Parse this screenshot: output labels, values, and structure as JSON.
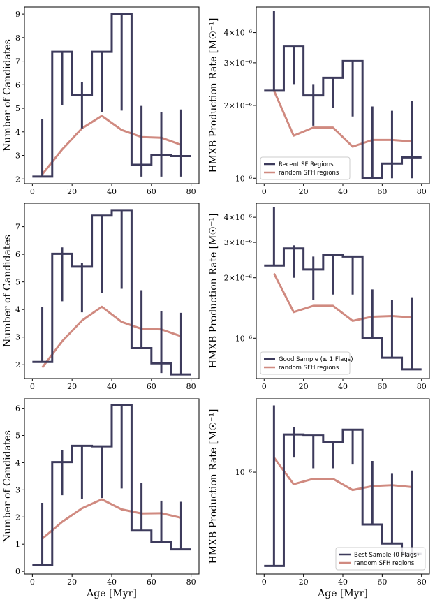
{
  "colors": {
    "step": "#3d3b5c",
    "random": "#d08a80"
  },
  "chart_data": [
    {
      "id": "p11",
      "type": "line",
      "xlabel": "",
      "ylabel": "Number of Candidates",
      "yscale": "linear",
      "xlim": [
        -4,
        84
      ],
      "ylim": [
        1.8,
        9.3
      ],
      "xticks": [
        0,
        20,
        40,
        60,
        80
      ],
      "xticklabels": [
        "0",
        "20",
        "40",
        "60",
        "80"
      ],
      "yticks": [
        2,
        3,
        4,
        5,
        6,
        7,
        8,
        9
      ],
      "yticklabels": [
        "2",
        "3",
        "4",
        "5",
        "6",
        "7",
        "8",
        "9"
      ],
      "step": {
        "edges": [
          0,
          10,
          20,
          30,
          40,
          50,
          60,
          70,
          80
        ],
        "values": [
          2.1,
          7.4,
          5.55,
          7.4,
          9.0,
          2.6,
          3.0,
          2.97
        ]
      },
      "errorbars": {
        "x": [
          5,
          15,
          25,
          35,
          45,
          55,
          65,
          75
        ],
        "lo": [
          2.1,
          5.15,
          4.15,
          4.85,
          4.9,
          2.1,
          2.1,
          2.1
        ],
        "hi": [
          4.55,
          7.4,
          6.1,
          7.4,
          9.0,
          5.1,
          4.85,
          4.95
        ]
      },
      "random": {
        "x": [
          5,
          15,
          25,
          35,
          45,
          55,
          65,
          75
        ],
        "y": [
          2.2,
          3.25,
          4.15,
          4.68,
          4.08,
          3.78,
          3.75,
          3.45
        ]
      },
      "legend": null
    },
    {
      "id": "p12",
      "type": "line",
      "xlabel": "",
      "ylabel": "HMXB Production Rate [M☉⁻¹]",
      "yscale": "log",
      "xlim": [
        -4,
        84
      ],
      "ylim": [
        9.5e-07,
        5.1e-06
      ],
      "xticks": [
        0,
        20,
        40,
        60,
        80
      ],
      "xticklabels": [
        "0",
        "20",
        "40",
        "60",
        "80"
      ],
      "yticks": [
        1e-06,
        2e-06,
        3e-06,
        4e-06
      ],
      "yticklabels": [
        "10⁻⁶",
        "2×10⁻⁶",
        "3×10⁻⁶",
        "4×10⁻⁶"
      ],
      "step": {
        "edges": [
          0,
          10,
          20,
          30,
          40,
          50,
          60,
          70,
          80
        ],
        "values": [
          2.3e-06,
          3.5e-06,
          2.2e-06,
          2.6e-06,
          3.05e-06,
          1e-06,
          1.15e-06,
          1.22e-06
        ]
      },
      "errorbars": {
        "x": [
          5,
          15,
          25,
          35,
          45,
          55,
          65,
          75
        ],
        "lo": [
          2.3e-06,
          2.45e-06,
          1.65e-06,
          1.95e-06,
          1.8e-06,
          1e-06,
          1e-06,
          1e-06
        ],
        "hi": [
          4.9e-06,
          3.5e-06,
          2.45e-06,
          2.6e-06,
          3.05e-06,
          1.98e-06,
          1.9e-06,
          2.08e-06
        ]
      },
      "random": {
        "x": [
          5,
          15,
          25,
          35,
          45,
          55,
          65,
          75
        ],
        "y": [
          2.3e-06,
          1.5e-06,
          1.62e-06,
          1.62e-06,
          1.35e-06,
          1.44e-06,
          1.44e-06,
          1.42e-06
        ]
      },
      "legend": {
        "position": "bottom-left",
        "entries": [
          {
            "label": "Recent SF Regions",
            "kind": "step"
          },
          {
            "label": "random SFH regions",
            "kind": "random"
          }
        ]
      }
    },
    {
      "id": "p21",
      "type": "line",
      "xlabel": "",
      "ylabel": "Number of Candidates",
      "yscale": "linear",
      "xlim": [
        -4,
        84
      ],
      "ylim": [
        1.5,
        7.85
      ],
      "xticks": [
        0,
        20,
        40,
        60,
        80
      ],
      "xticklabels": [
        "0",
        "20",
        "40",
        "60",
        "80"
      ],
      "yticks": [
        2,
        3,
        4,
        5,
        6,
        7
      ],
      "yticklabels": [
        "2",
        "3",
        "4",
        "5",
        "6",
        "7"
      ],
      "step": {
        "edges": [
          0,
          10,
          20,
          30,
          40,
          50,
          60,
          70,
          80
        ],
        "values": [
          2.1,
          6.02,
          5.55,
          7.4,
          7.6,
          2.6,
          2.05,
          1.65
        ]
      },
      "errorbars": {
        "x": [
          5,
          15,
          25,
          35,
          45,
          55,
          65,
          75
        ],
        "lo": [
          2.1,
          4.3,
          3.9,
          4.6,
          4.75,
          2.6,
          1.7,
          1.65
        ],
        "hi": [
          4.1,
          6.25,
          5.68,
          7.4,
          7.6,
          4.7,
          3.95,
          3.88
        ]
      },
      "random": {
        "x": [
          5,
          15,
          25,
          35,
          45,
          55,
          65,
          75
        ],
        "y": [
          1.9,
          2.85,
          3.6,
          4.1,
          3.55,
          3.3,
          3.28,
          3.03
        ]
      },
      "legend": null
    },
    {
      "id": "p22",
      "type": "line",
      "xlabel": "",
      "ylabel": "HMXB Production Rate [M☉⁻¹]",
      "yscale": "log",
      "xlim": [
        -4,
        84
      ],
      "ylim": [
        6.3e-07,
        4.7e-06
      ],
      "xticks": [
        0,
        20,
        40,
        60,
        80
      ],
      "xticklabels": [
        "0",
        "20",
        "40",
        "60",
        "80"
      ],
      "yticks": [
        1e-06,
        2e-06,
        3e-06,
        4e-06
      ],
      "yticklabels": [
        "10⁻⁶",
        "2×10⁻⁶",
        "3×10⁻⁶",
        "4×10⁻⁶"
      ],
      "step": {
        "edges": [
          0,
          10,
          20,
          30,
          40,
          50,
          60,
          70,
          80
        ],
        "values": [
          2.3e-06,
          2.8e-06,
          2.2e-06,
          2.6e-06,
          2.55e-06,
          1e-06,
          8e-07,
          7e-07
        ]
      },
      "errorbars": {
        "x": [
          5,
          15,
          25,
          35,
          45,
          55,
          65,
          75
        ],
        "lo": [
          2.3e-06,
          2e-06,
          1.55e-06,
          1.65e-06,
          1.65e-06,
          1e-06,
          8e-07,
          7e-07
        ],
        "hi": [
          4.5e-06,
          2.9e-06,
          2.55e-06,
          2.6e-06,
          2.55e-06,
          1.75e-06,
          1.55e-06,
          1.6e-06
        ]
      },
      "random": {
        "x": [
          5,
          15,
          25,
          35,
          45,
          55,
          65,
          75
        ],
        "y": [
          2.1e-06,
          1.35e-06,
          1.45e-06,
          1.45e-06,
          1.22e-06,
          1.28e-06,
          1.29e-06,
          1.27e-06
        ]
      },
      "legend": {
        "position": "bottom-left",
        "entries": [
          {
            "label": "Good Sample (≤ 1 Flags)",
            "kind": "step"
          },
          {
            "label": "random SFH regions",
            "kind": "random"
          }
        ]
      }
    },
    {
      "id": "p31",
      "type": "line",
      "xlabel": "Age [Myr]",
      "ylabel": "Number of Candidates",
      "yscale": "linear",
      "xlim": [
        -4,
        84
      ],
      "ylim": [
        -0.1,
        6.35
      ],
      "xticks": [
        0,
        20,
        40,
        60,
        80
      ],
      "xticklabels": [
        "0",
        "20",
        "40",
        "60",
        "80"
      ],
      "yticks": [
        0,
        1,
        2,
        3,
        4,
        5,
        6
      ],
      "yticklabels": [
        "0",
        "1",
        "2",
        "3",
        "4",
        "5",
        "6"
      ],
      "step": {
        "edges": [
          0,
          10,
          20,
          30,
          40,
          50,
          60,
          70,
          80
        ],
        "values": [
          0.22,
          4.02,
          4.62,
          4.6,
          6.12,
          1.5,
          1.07,
          0.81
        ]
      },
      "errorbars": {
        "x": [
          5,
          15,
          25,
          35,
          45,
          55,
          65,
          75
        ],
        "lo": [
          0.22,
          2.8,
          2.65,
          2.7,
          3.05,
          1.5,
          1.07,
          0.81
        ],
        "hi": [
          2.52,
          4.45,
          4.62,
          4.6,
          6.12,
          3.25,
          2.6,
          2.56
        ]
      },
      "random": {
        "x": [
          5,
          15,
          25,
          35,
          45,
          55,
          65,
          75
        ],
        "y": [
          1.2,
          1.82,
          2.32,
          2.65,
          2.28,
          2.13,
          2.14,
          1.97
        ]
      },
      "legend": null
    },
    {
      "id": "p32",
      "type": "line",
      "xlabel": "Age [Myr]",
      "ylabel": "HMXB Production Rate [M☉⁻¹]",
      "yscale": "log",
      "xlim": [
        -4,
        84
      ],
      "ylim": [
        2.8e-07,
        2.5e-06
      ],
      "xticks": [
        0,
        20,
        40,
        60,
        80
      ],
      "xticklabels": [
        "0",
        "20",
        "40",
        "60",
        "80"
      ],
      "yticks": [
        1e-06
      ],
      "yticklabels": [
        "10⁻⁶"
      ],
      "step": {
        "edges": [
          0,
          10,
          20,
          30,
          40,
          50,
          60,
          70,
          80
        ],
        "values": [
          3.1e-07,
          1.6e-06,
          1.58e-06,
          1.45e-06,
          1.7e-06,
          5.2e-07,
          4.1e-07,
          3.6e-07
        ]
      },
      "errorbars": {
        "x": [
          5,
          15,
          25,
          35,
          45,
          55,
          65,
          75
        ],
        "lo": [
          3.1e-07,
          1.2e-06,
          1.05e-06,
          1.05e-06,
          1.1e-06,
          5.2e-07,
          4.1e-07,
          3.6e-07
        ],
        "hi": [
          2.3e-06,
          1.75e-06,
          1.58e-06,
          1.45e-06,
          1.7e-06,
          1.15e-06,
          9.8e-07,
          1.02e-06
        ]
      },
      "random": {
        "x": [
          5,
          15,
          25,
          35,
          45,
          55,
          65,
          75
        ],
        "y": [
          1.2e-06,
          8.6e-07,
          9.2e-07,
          9.2e-07,
          8e-07,
          8.4e-07,
          8.5e-07,
          8.3e-07
        ]
      },
      "legend": {
        "position": "bottom-right",
        "entries": [
          {
            "label": "Best Sample (0 Flags)",
            "kind": "step"
          },
          {
            "label": "random SFH regions",
            "kind": "random"
          }
        ]
      }
    }
  ]
}
